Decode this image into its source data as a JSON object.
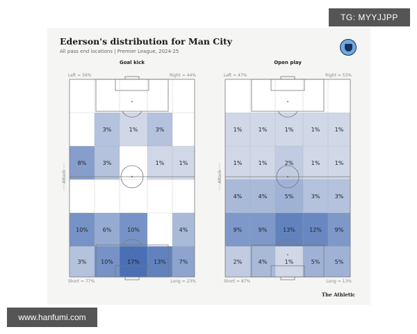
{
  "watermarks": {
    "top": "TG: MYYJJPP",
    "bottom": "www.hanfumi.com"
  },
  "header": {
    "title": "Ederson's distribution for Man City",
    "subtitle": "All pass end locations | Premier League, 2024-25",
    "source": "The Athletic"
  },
  "colors": {
    "max": "#4a6fb5",
    "min": "#f5f5f4",
    "card": "#f5f5f4"
  },
  "chart_data": [
    {
      "type": "heatmap",
      "title": "Goal kick",
      "labels": {
        "left": "Left = 56%",
        "right": "Right = 44%",
        "short": "Short = 77%",
        "long": "Long = 23%",
        "side": "Attack"
      },
      "grid": [
        [
          "",
          "",
          "",
          "",
          ""
        ],
        [
          "",
          "3%",
          "1%",
          "3%",
          ""
        ],
        [
          "8%",
          "3%",
          "",
          "1%",
          "1%"
        ],
        [
          "",
          "",
          "",
          "",
          ""
        ],
        [
          "10%",
          "6%",
          "10%",
          "",
          "4%"
        ],
        [
          "3%",
          "10%",
          "17%",
          "13%",
          "7%"
        ]
      ]
    },
    {
      "type": "heatmap",
      "title": "Open play",
      "labels": {
        "left": "Left = 47%",
        "right": "Right = 53%",
        "short": "Short = 87%",
        "long": "Long = 13%",
        "side": "Attack"
      },
      "grid": [
        [
          "",
          "",
          "",
          "",
          ""
        ],
        [
          "1%",
          "1%",
          "1%",
          "1%",
          "1%"
        ],
        [
          "1%",
          "1%",
          "2%",
          "1%",
          "1%"
        ],
        [
          "4%",
          "4%",
          "5%",
          "3%",
          "3%"
        ],
        [
          "9%",
          "9%",
          "13%",
          "12%",
          "9%"
        ],
        [
          "2%",
          "4%",
          "1%",
          "5%",
          "5%"
        ]
      ]
    }
  ]
}
